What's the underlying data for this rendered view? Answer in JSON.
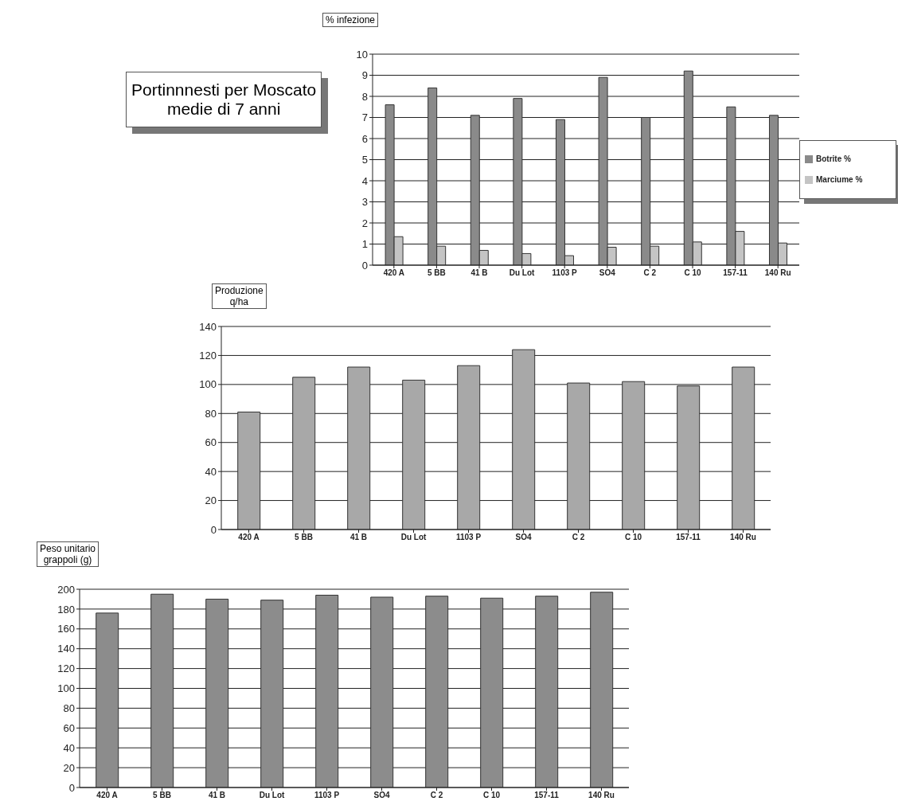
{
  "chart_data": [
    {
      "type": "bar",
      "title": "Portinnnesti per Moscato\nmedie di 7 anni",
      "ylabel": "% infezione",
      "categories": [
        "420 A",
        "5 BB",
        "41 B",
        "Du Lot",
        "1103 P",
        "SO4",
        "C 2",
        "C 10",
        "157-11",
        "140 Ru"
      ],
      "series": [
        {
          "name": "Botrite %",
          "color": "#8a8a8a",
          "values": [
            7.6,
            8.4,
            7.1,
            7.9,
            6.9,
            8.9,
            7.0,
            9.2,
            7.5,
            7.1
          ]
        },
        {
          "name": "Marciume %",
          "color": "#c4c4c4",
          "values": [
            1.35,
            0.9,
            0.7,
            0.55,
            0.45,
            0.85,
            0.9,
            1.1,
            1.6,
            1.05
          ]
        }
      ],
      "ylim": [
        0,
        10
      ],
      "yticks": [
        0,
        1,
        2,
        3,
        4,
        5,
        6,
        7,
        8,
        9,
        10
      ],
      "grid": "y",
      "legend": "right"
    },
    {
      "type": "bar",
      "ylabel": "Produzione\nq/ha",
      "categories": [
        "420 A",
        "5 BB",
        "41 B",
        "Du Lot",
        "1103 P",
        "SO4",
        "C 2",
        "C 10",
        "157-11",
        "140 Ru"
      ],
      "values": [
        81,
        105,
        112,
        103,
        113,
        124,
        101,
        102,
        99,
        112
      ],
      "color": "#a8a8a8",
      "ylim": [
        0,
        140
      ],
      "yticks": [
        0,
        20,
        40,
        60,
        80,
        100,
        120,
        140
      ],
      "grid": "y"
    },
    {
      "type": "bar",
      "ylabel": "Peso unitario\ngrappoli (g)",
      "categories": [
        "420 A",
        "5 BB",
        "41 B",
        "Du Lot",
        "1103 P",
        "SO4",
        "C 2",
        "C 10",
        "157-11",
        "140 Ru"
      ],
      "values": [
        176,
        195,
        190,
        189,
        194,
        192,
        193,
        191,
        193,
        197
      ],
      "color": "#8c8c8c",
      "ylim": [
        0,
        200
      ],
      "yticks": [
        0,
        20,
        40,
        60,
        80,
        100,
        120,
        140,
        160,
        180,
        200
      ],
      "grid": "y"
    }
  ]
}
